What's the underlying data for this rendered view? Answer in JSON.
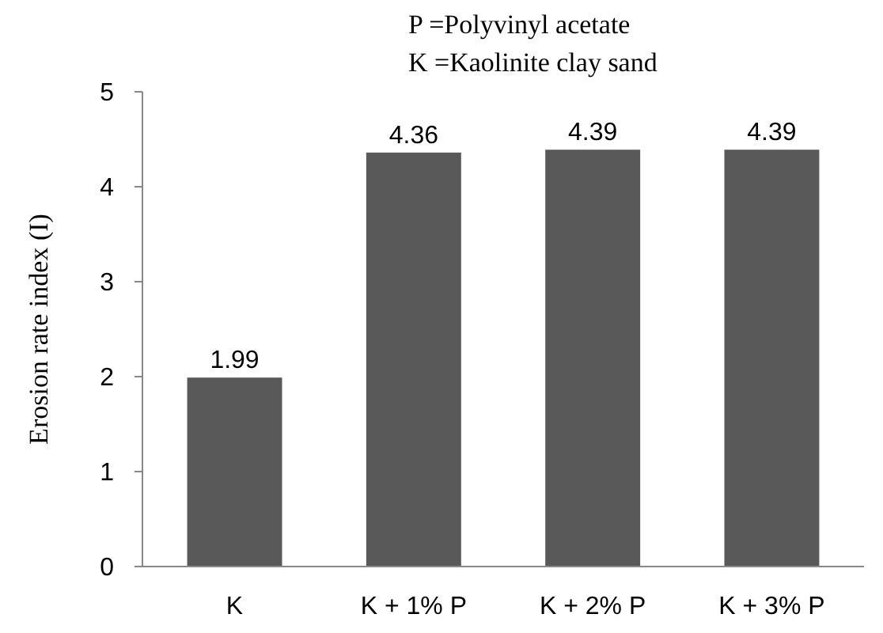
{
  "chart_data": {
    "type": "bar",
    "ylabel": "Erosion rate index (I)",
    "annotations": [
      "P =Polyvinyl acetate",
      "K =Kaolinite clay sand"
    ],
    "categories": [
      "K",
      "K + 1% P",
      "K + 2% P",
      "K + 3% P"
    ],
    "values": [
      1.99,
      4.36,
      4.39,
      4.39
    ],
    "color": "#595959",
    "ylim": [
      0,
      5
    ],
    "yticks": [
      0,
      1,
      2,
      3,
      4,
      5
    ],
    "data_labels": true,
    "grid": false
  }
}
